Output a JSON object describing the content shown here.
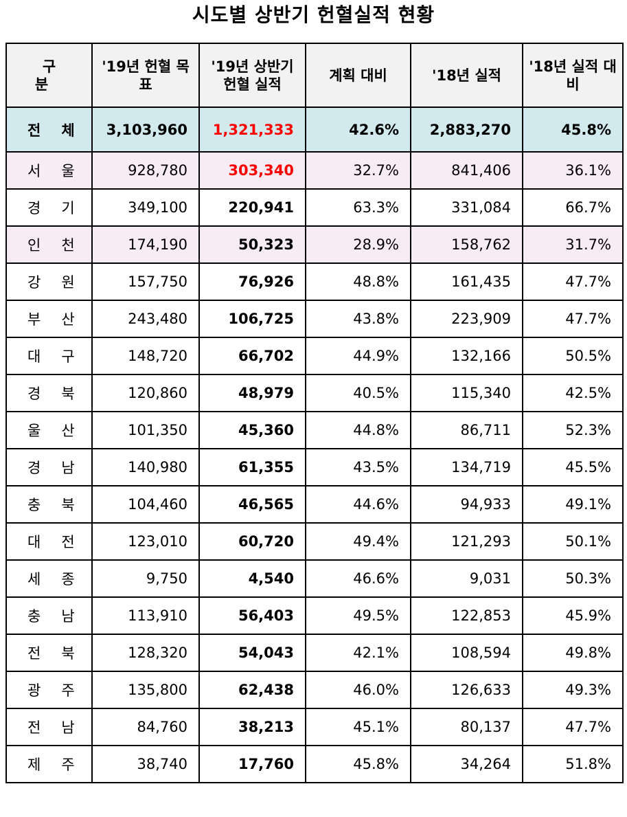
{
  "title": "시도별 상반기 헌혈실적 현황",
  "table": {
    "headers": [
      "구 분",
      "'19년 헌혈 목표",
      "'19년 상반기 헌혈 실적",
      "계획 대비",
      "'18년 실적",
      "'18년 실적 대비"
    ],
    "total": {
      "region": "전체",
      "target_19": "3,103,960",
      "actual_19h1": "1,321,333",
      "vs_plan": "42.6%",
      "actual_18": "2,883,270",
      "vs_18": "45.8%"
    },
    "rows": [
      {
        "region": "서울",
        "target_19": "928,780",
        "actual_19h1": "303,340",
        "vs_plan": "32.7%",
        "actual_18": "841,406",
        "vs_18": "36.1%"
      },
      {
        "region": "경기",
        "target_19": "349,100",
        "actual_19h1": "220,941",
        "vs_plan": "63.3%",
        "actual_18": "331,084",
        "vs_18": "66.7%"
      },
      {
        "region": "인천",
        "target_19": "174,190",
        "actual_19h1": "50,323",
        "vs_plan": "28.9%",
        "actual_18": "158,762",
        "vs_18": "31.7%"
      },
      {
        "region": "강원",
        "target_19": "157,750",
        "actual_19h1": "76,926",
        "vs_plan": "48.8%",
        "actual_18": "161,435",
        "vs_18": "47.7%"
      },
      {
        "region": "부산",
        "target_19": "243,480",
        "actual_19h1": "106,725",
        "vs_plan": "43.8%",
        "actual_18": "223,909",
        "vs_18": "47.7%"
      },
      {
        "region": "대구",
        "target_19": "148,720",
        "actual_19h1": "66,702",
        "vs_plan": "44.9%",
        "actual_18": "132,166",
        "vs_18": "50.5%"
      },
      {
        "region": "경북",
        "target_19": "120,860",
        "actual_19h1": "48,979",
        "vs_plan": "40.5%",
        "actual_18": "115,340",
        "vs_18": "42.5%"
      },
      {
        "region": "울산",
        "target_19": "101,350",
        "actual_19h1": "45,360",
        "vs_plan": "44.8%",
        "actual_18": "86,711",
        "vs_18": "52.3%"
      },
      {
        "region": "경남",
        "target_19": "140,980",
        "actual_19h1": "61,355",
        "vs_plan": "43.5%",
        "actual_18": "134,719",
        "vs_18": "45.5%"
      },
      {
        "region": "충북",
        "target_19": "104,460",
        "actual_19h1": "46,565",
        "vs_plan": "44.6%",
        "actual_18": "94,933",
        "vs_18": "49.1%"
      },
      {
        "region": "대전",
        "target_19": "123,010",
        "actual_19h1": "60,720",
        "vs_plan": "49.4%",
        "actual_18": "121,293",
        "vs_18": "50.1%"
      },
      {
        "region": "세종",
        "target_19": "9,750",
        "actual_19h1": "4,540",
        "vs_plan": "46.6%",
        "actual_18": "9,031",
        "vs_18": "50.3%"
      },
      {
        "region": "충남",
        "target_19": "113,910",
        "actual_19h1": "56,403",
        "vs_plan": "49.5%",
        "actual_18": "122,853",
        "vs_18": "45.9%"
      },
      {
        "region": "전북",
        "target_19": "128,320",
        "actual_19h1": "54,043",
        "vs_plan": "42.1%",
        "actual_18": "108,594",
        "vs_18": "49.8%"
      },
      {
        "region": "광주",
        "target_19": "135,800",
        "actual_19h1": "62,438",
        "vs_plan": "46.0%",
        "actual_18": "126,633",
        "vs_18": "49.3%"
      },
      {
        "region": "전남",
        "target_19": "84,760",
        "actual_19h1": "38,213",
        "vs_plan": "45.1%",
        "actual_18": "80,137",
        "vs_18": "47.7%"
      },
      {
        "region": "제주",
        "target_19": "38,740",
        "actual_19h1": "17,760",
        "vs_plan": "45.8%",
        "actual_18": "34,264",
        "vs_18": "51.8%"
      }
    ]
  },
  "colors": {
    "header_bg": "#f2f2f2",
    "total_bg": "#d2eaee",
    "highlight_bg": "#f7ebf4",
    "highlight_text": "#ff0000"
  }
}
